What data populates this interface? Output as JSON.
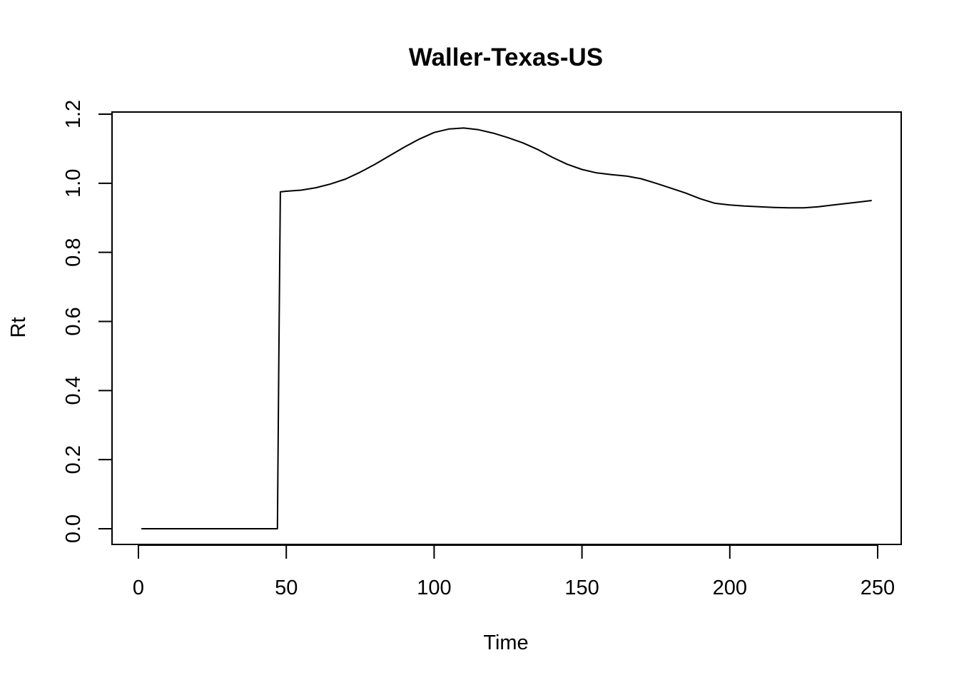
{
  "chart_data": {
    "type": "line",
    "title": "Waller-Texas-US",
    "xlabel": "Time",
    "ylabel": "Rt",
    "xlim": [
      0,
      250
    ],
    "ylim": [
      0.0,
      1.2
    ],
    "xticks": [
      0,
      50,
      100,
      150,
      200,
      250
    ],
    "yticks": [
      0.0,
      0.2,
      0.4,
      0.6,
      0.8,
      1.0,
      1.2
    ],
    "xtick_labels": [
      "0",
      "50",
      "100",
      "150",
      "200",
      "250"
    ],
    "ytick_labels": [
      "0.0",
      "0.2",
      "0.4",
      "0.6",
      "0.8",
      "1.0",
      "1.2"
    ],
    "grid": false,
    "series": [
      {
        "color": "#000000",
        "x": [
          1,
          10,
          20,
          30,
          40,
          47,
          47.5,
          48,
          50,
          55,
          60,
          65,
          70,
          75,
          80,
          85,
          90,
          95,
          100,
          105,
          110,
          115,
          120,
          125,
          130,
          135,
          140,
          145,
          150,
          155,
          160,
          165,
          170,
          175,
          180,
          185,
          190,
          195,
          200,
          205,
          210,
          215,
          220,
          225,
          230,
          235,
          240,
          245,
          248
        ],
        "y": [
          0,
          0,
          0,
          0,
          0,
          0,
          0.5,
          0.975,
          0.977,
          0.98,
          0.987,
          0.998,
          1.012,
          1.032,
          1.055,
          1.08,
          1.105,
          1.128,
          1.147,
          1.157,
          1.16,
          1.155,
          1.145,
          1.132,
          1.117,
          1.098,
          1.075,
          1.055,
          1.04,
          1.03,
          1.025,
          1.021,
          1.013,
          1.0,
          0.986,
          0.972,
          0.955,
          0.942,
          0.937,
          0.934,
          0.932,
          0.93,
          0.929,
          0.929,
          0.932,
          0.937,
          0.942,
          0.947,
          0.95
        ]
      }
    ]
  }
}
